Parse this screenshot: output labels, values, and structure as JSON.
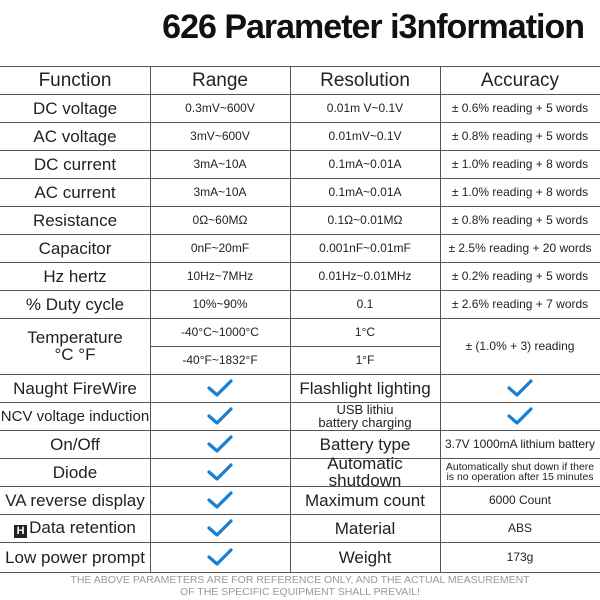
{
  "title": "626 Parameter i3nformation",
  "table": {
    "header": [
      "Function",
      "Range",
      "Resolution",
      "Accuracy"
    ],
    "measurements": [
      [
        "DC voltage",
        "0.3mV~600V",
        "0.01m  V~0.1V",
        "± 0.6% reading + 5 words"
      ],
      [
        "AC voltage",
        "3mV~600V",
        "0.01mV~0.1V",
        "± 0.8% reading + 5 words"
      ],
      [
        "DC current",
        "3mA~10A",
        "0.1mA~0.01A",
        "± 1.0% reading + 8 words"
      ],
      [
        "AC current",
        "3mA~10A",
        "0.1mA~0.01A",
        "± 1.0% reading + 8 words"
      ],
      [
        "Resistance",
        "0Ω~60MΩ",
        "0.1Ω~0.01MΩ",
        "± 0.8% reading + 5 words"
      ],
      [
        "Capacitor",
        "0nF~20mF",
        "0.001nF~0.01mF",
        "± 2.5% reading + 20 words"
      ],
      [
        "Hz hertz",
        "10Hz~7MHz",
        "0.01Hz~0.01MHz",
        "± 0.2% reading + 5 words"
      ],
      [
        "% Duty cycle",
        "10%~90%",
        "0.1",
        "± 2.6% reading + 7 words"
      ]
    ],
    "temperature": {
      "label_lines": [
        "Temperature",
        "°C °F"
      ],
      "ranges": [
        "-40°C~1000°C",
        "-40°F~1832°F"
      ],
      "resolutions": [
        "1°C",
        "1°F"
      ],
      "accuracy": "± (1.0% + 3) reading"
    },
    "features": [
      {
        "left": "Naught FireWire",
        "right_lines": [
          "Flashlight lighting"
        ]
      },
      {
        "left": "NCV voltage induction",
        "right_lines": [
          "USB lithiu",
          "battery charging"
        ]
      },
      {
        "left": "On/Off",
        "right_lines": [
          "Battery type"
        ],
        "value_lines": [
          "3.7V 1000mA lithium battery"
        ]
      },
      {
        "left": "Diode",
        "right_lines": [
          "Automatic shutdown"
        ],
        "value_lines": [
          "Automatically shut down if there",
          "is no operation after 15 minutes"
        ]
      },
      {
        "left": "VA reverse display",
        "right_lines": [
          "Maximum count"
        ],
        "value_lines": [
          "6000 Count"
        ]
      },
      {
        "left": "Data retention",
        "right_lines": [
          "Material"
        ],
        "value_lines": [
          "ABS"
        ]
      },
      {
        "left": "Low power prompt",
        "right_lines": [
          "Weight"
        ],
        "value_lines": [
          "173g"
        ]
      }
    ]
  },
  "footer": [
    "THE ABOVE PARAMETERS ARE FOR REFERENCE ONLY, AND THE ACTUAL MEASUREMENT",
    "OF THE SPECIFIC EQUIPMENT SHALL PREVAIL!"
  ]
}
